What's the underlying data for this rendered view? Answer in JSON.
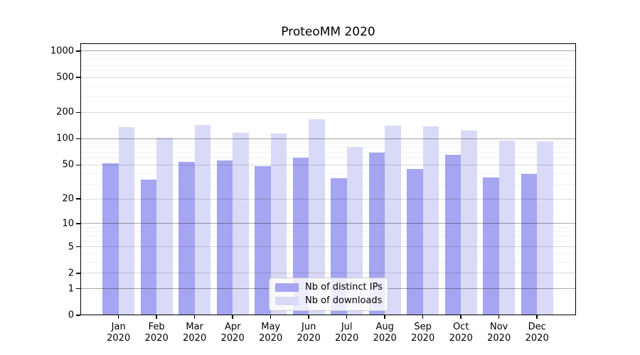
{
  "title": "ProteoMM 2020",
  "chart_data": {
    "type": "bar",
    "title": "ProteoMM 2020",
    "categories": [
      "Jan 2020",
      "Feb 2020",
      "Mar 2020",
      "Apr 2020",
      "May 2020",
      "Jun 2020",
      "Jul 2020",
      "Aug 2020",
      "Sep 2020",
      "Oct 2020",
      "Nov 2020",
      "Dec 2020"
    ],
    "series": [
      {
        "name": "Nb of distinct IPs",
        "color": "#a5a5f2",
        "values": [
          52,
          34,
          54,
          56,
          48,
          61,
          35,
          69,
          45,
          65,
          36,
          39
        ]
      },
      {
        "name": "Nb of downloads",
        "color": "#d9d9f8",
        "values": [
          135,
          103,
          144,
          117,
          115,
          166,
          80,
          142,
          140,
          123,
          95,
          93
        ]
      }
    ],
    "yscale": "log1p",
    "ylim": [
      0,
      1000
    ],
    "yticks": [
      0,
      1,
      2,
      5,
      10,
      20,
      50,
      100,
      200,
      500,
      1000
    ],
    "xlabel": "",
    "ylabel": "",
    "legend_position": "lower center",
    "grid": true
  }
}
